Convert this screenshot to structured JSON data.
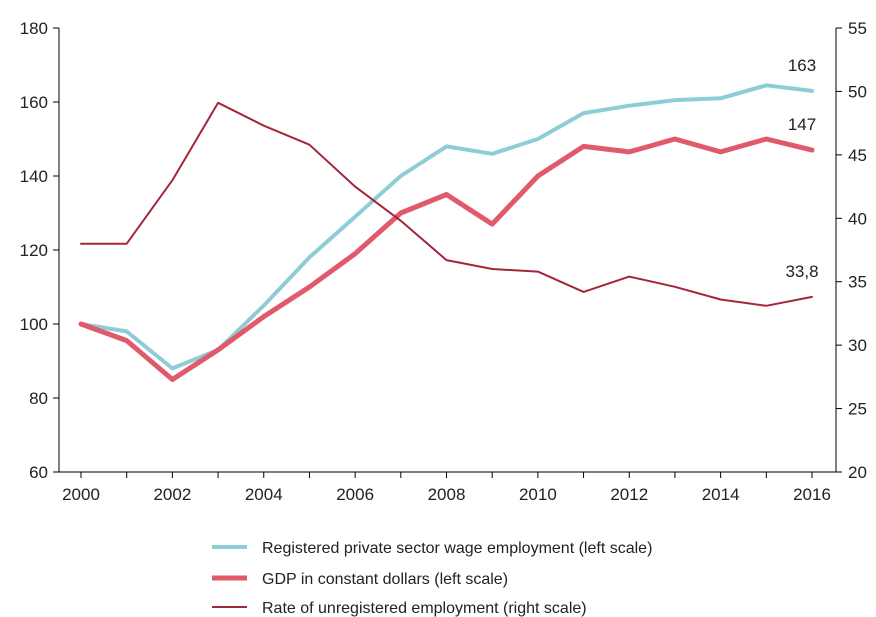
{
  "chart_data": {
    "type": "line",
    "title": "",
    "xlabel": "",
    "ylabel": "",
    "x": [
      2000,
      2001,
      2002,
      2003,
      2004,
      2005,
      2006,
      2007,
      2008,
      2009,
      2010,
      2011,
      2012,
      2013,
      2014,
      2015,
      2016
    ],
    "xlim": [
      2000,
      2016
    ],
    "xticks": [
      "2000",
      "2002",
      "2004",
      "2006",
      "2008",
      "2010",
      "2012",
      "2014",
      "2016"
    ],
    "ylim_left": [
      60,
      180
    ],
    "yticks_left": [
      "60",
      "80",
      "100",
      "120",
      "140",
      "160",
      "180"
    ],
    "ylim_right": [
      20,
      55
    ],
    "yticks_right": [
      "20",
      "25",
      "30",
      "35",
      "40",
      "45",
      "50",
      "55"
    ],
    "grid": false,
    "legend_position": "bottom",
    "series": [
      {
        "name": "Registered private sector wage employment (left scale)",
        "axis": "left",
        "color": "#8fcdd6",
        "values": [
          100,
          98,
          88,
          93,
          105,
          118,
          129,
          140,
          148,
          146,
          150,
          157,
          159,
          160.5,
          161,
          164.5,
          163
        ],
        "end_label": "163"
      },
      {
        "name": "GDP in constant dollars (left scale)",
        "axis": "left",
        "color": "#e05a6c",
        "values": [
          100,
          95.5,
          85,
          93,
          102,
          110,
          119,
          130,
          135,
          127,
          140,
          148,
          146.5,
          150,
          146.5,
          150,
          147
        ],
        "end_label": "147"
      },
      {
        "name": "Rate of unregistered employment (right scale)",
        "axis": "right",
        "color": "#a3263a",
        "values": [
          38,
          38,
          43,
          49.1,
          47.3,
          45.8,
          42.5,
          39.8,
          36.7,
          36,
          35.8,
          34.2,
          35.4,
          34.6,
          33.6,
          33.1,
          33.8
        ],
        "end_label": "33,8"
      }
    ]
  }
}
